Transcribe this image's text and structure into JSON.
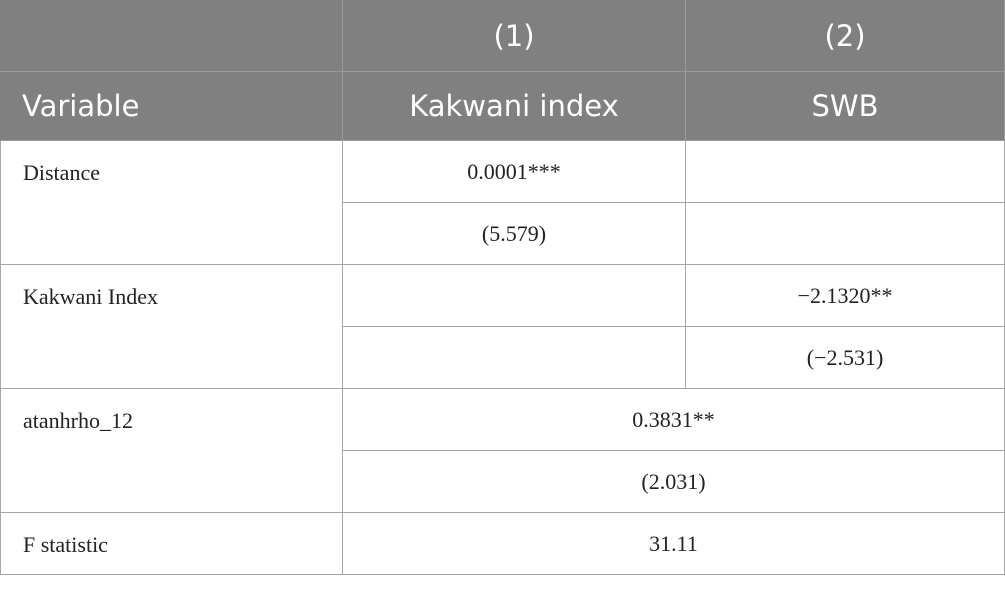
{
  "table": {
    "header": {
      "numbers": [
        "(1)",
        "(2)"
      ],
      "variable": "Variable",
      "labels": [
        "Kakwani index",
        "SWB"
      ]
    },
    "rows": [
      {
        "variable": "Distance",
        "col1": [
          "0.0001***",
          "(5.579)"
        ]
      },
      {
        "variable": "Kakwani Index",
        "col2": [
          "−2.1320**",
          "(−2.531)"
        ]
      },
      {
        "variable": "atanhrho_12",
        "both": [
          "0.3831**",
          "(2.031)"
        ]
      },
      {
        "variable": "F statistic",
        "both": [
          "31.11"
        ]
      }
    ]
  }
}
